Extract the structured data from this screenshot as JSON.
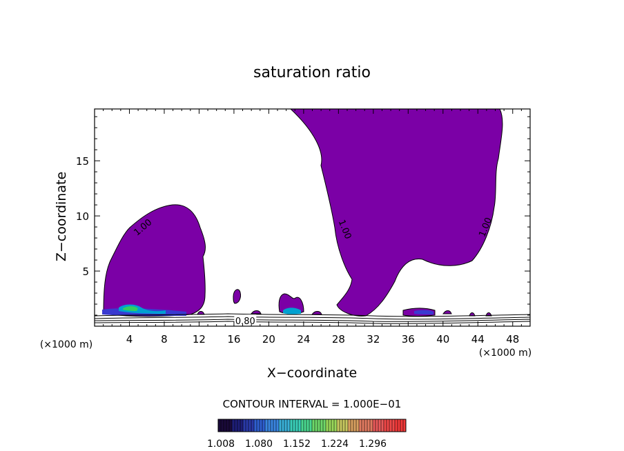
{
  "chart_data": {
    "type": "contour",
    "title": "saturation ratio",
    "xlabel": "X−coordinate",
    "ylabel": "Z−coordinate",
    "x_unit_label": "(×1000 m)",
    "y_unit_label": "(×1000 m)",
    "xlim": [
      0,
      50
    ],
    "ylim": [
      0,
      19.7
    ],
    "x_ticks": [
      4,
      8,
      12,
      16,
      20,
      24,
      28,
      32,
      36,
      40,
      44,
      48
    ],
    "y_ticks": [
      5,
      10,
      15
    ],
    "contour_interval_label": "CONTOUR INTERVAL = 1.000E−01",
    "contour_labels": [
      {
        "text": "1.00",
        "x": 5.5,
        "z": 9.0,
        "rotation": -40
      },
      {
        "text": "1.00",
        "x": 28.8,
        "z": 8.8,
        "rotation": 68
      },
      {
        "text": "1.00",
        "x": 44.8,
        "z": 9.0,
        "rotation": -68
      },
      {
        "text": "0.80",
        "x": 17.3,
        "z": 0.5,
        "rotation": 0
      }
    ],
    "shaded_colors": {
      "supersaturated_fill": "#7b00a6",
      "band_low": "#3a3ad0",
      "band_mid": "#00a0d0",
      "band_high": "#30d060"
    },
    "colorbar": {
      "min": 1.008,
      "max": 1.35,
      "tick_labels": [
        "1.008",
        "1.080",
        "1.152",
        "1.224",
        "1.296"
      ],
      "colors": [
        "#1a0a3a",
        "#1e1e78",
        "#2a3aa8",
        "#2f5fd0",
        "#3a85e0",
        "#3ab0d8",
        "#3acfb8",
        "#4ad890",
        "#6ed86a",
        "#9ad85a",
        "#c8c860",
        "#d8a060",
        "#e07a60",
        "#e85a5a",
        "#ef4848",
        "#f23a3a"
      ]
    },
    "grid": false
  }
}
